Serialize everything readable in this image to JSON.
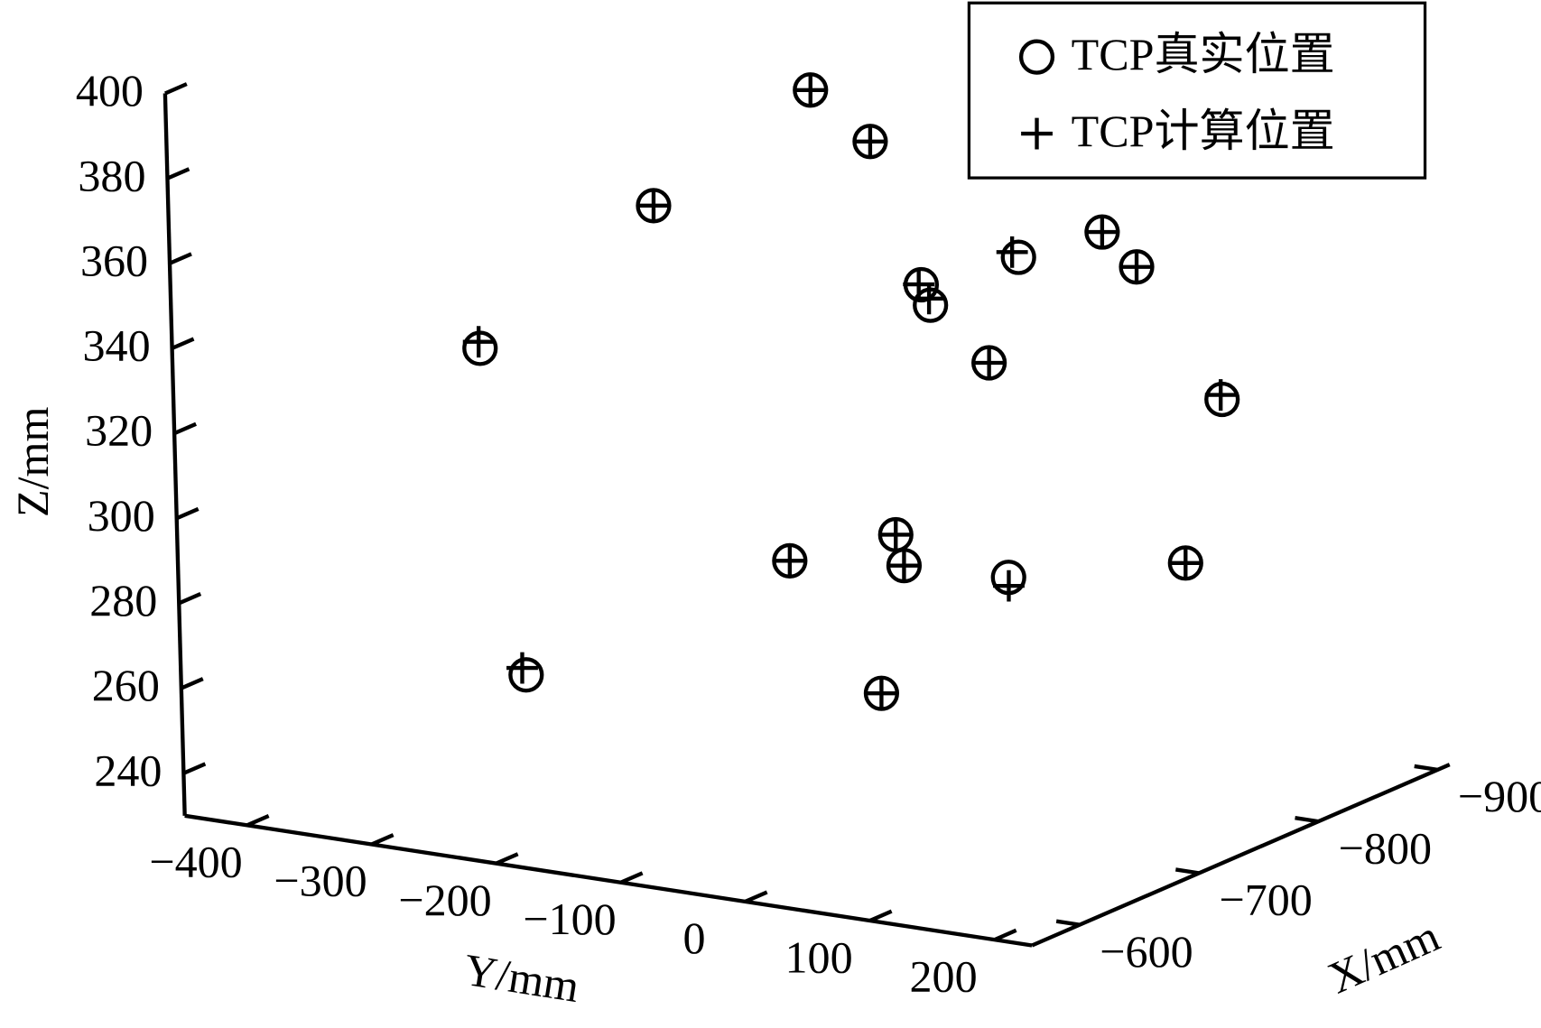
{
  "chart_data": {
    "type": "scatter3d",
    "xlabel": "X/mm",
    "ylabel": "Y/mm",
    "zlabel": "Z/mm",
    "xlim": [
      -560,
      -910
    ],
    "xticks": [
      {
        "value": -600,
        "label": "−600"
      },
      {
        "value": -700,
        "label": "−700"
      },
      {
        "value": -800,
        "label": "−800"
      },
      {
        "value": -900,
        "label": "−900"
      }
    ],
    "ylim": [
      -450,
      230
    ],
    "yticks": [
      {
        "value": -400,
        "label": "−400"
      },
      {
        "value": -300,
        "label": "−300"
      },
      {
        "value": -200,
        "label": "−200"
      },
      {
        "value": -100,
        "label": "−100"
      },
      0,
      100,
      200
    ],
    "zlim": [
      230,
      400
    ],
    "zticks": [
      240,
      260,
      280,
      300,
      320,
      340,
      360,
      380,
      400
    ],
    "legend": "top-right",
    "series": [
      {
        "name": "TCP真实位置",
        "marker": "circle",
        "color": "#000000",
        "x": [
          -700,
          -700,
          -700,
          -700,
          -700,
          -700,
          -700,
          -700,
          -700,
          -700,
          -850,
          -700,
          -700,
          -700,
          -850,
          -700,
          -700,
          -700
        ],
        "y": [
          -66,
          -19,
          -195,
          166,
          98,
          193,
          19,
          26,
          -338,
          72,
          113,
          -7,
          -93,
          -1,
          80,
          83,
          -308,
          -22
        ],
        "z": [
          401,
          391,
          368,
          378,
          369,
          371,
          359,
          354.5,
          328,
          343,
          318,
          299,
          289,
          292,
          278,
          293,
          252.5,
          261
        ]
      },
      {
        "name": "TCP计算位置",
        "marker": "plus",
        "color": "#000000",
        "x": [
          -700,
          -700,
          -700,
          -700,
          -700,
          -700,
          -700,
          -700,
          -700,
          -700,
          -850,
          -700,
          -700,
          -700,
          -850,
          -700,
          -700,
          -700
        ],
        "y": [
          -66,
          -19,
          -195,
          166,
          93,
          193,
          17,
          25,
          -339,
          72,
          112,
          -7,
          -93,
          -1,
          80,
          83,
          -311,
          -22
        ],
        "z": [
          401,
          391,
          368,
          378,
          370,
          371,
          359,
          356,
          329.5,
          343,
          319,
          299,
          289,
          292,
          278,
          291,
          254,
          261
        ]
      }
    ]
  }
}
